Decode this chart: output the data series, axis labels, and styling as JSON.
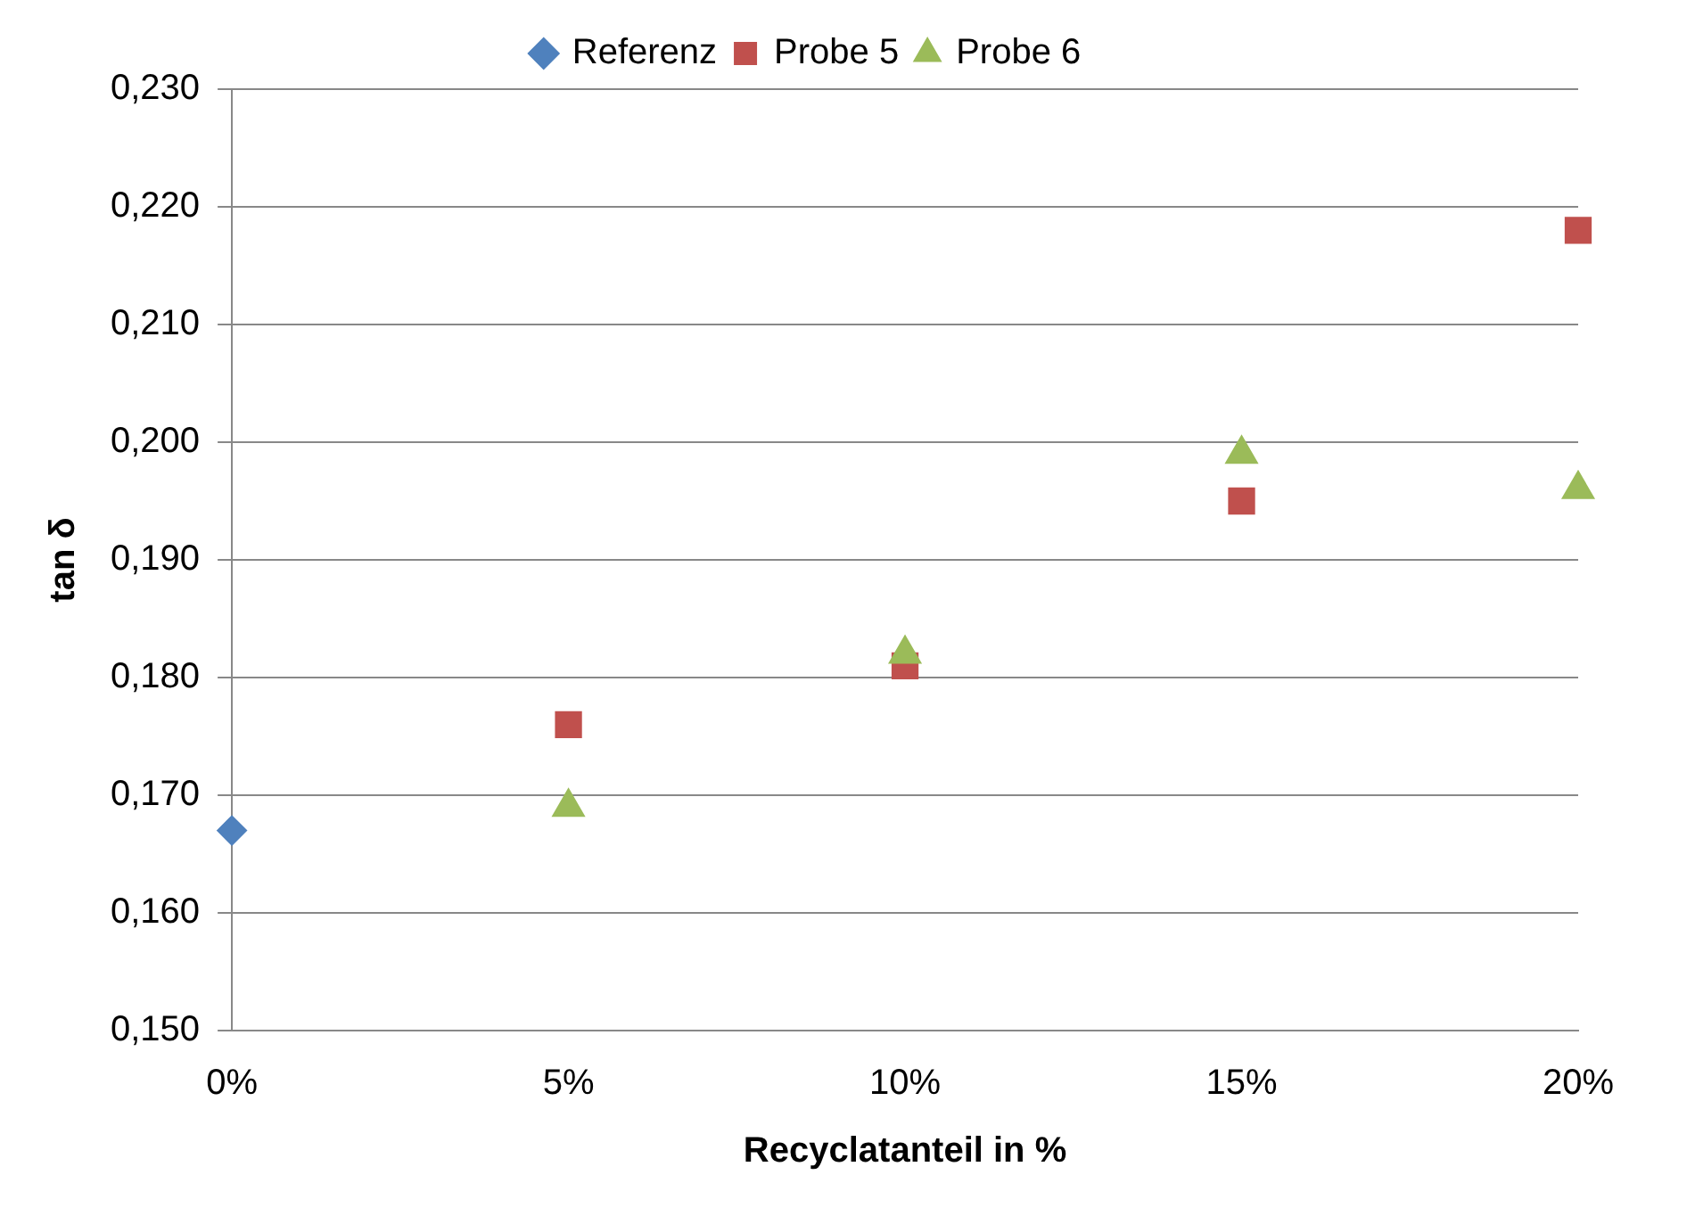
{
  "chart_data": {
    "type": "scatter",
    "xlabel": "Recyclatanteil in %",
    "ylabel": "tan δ",
    "xlim": [
      0,
      20
    ],
    "xticks": [
      {
        "value": 0,
        "label": "0%"
      },
      {
        "value": 5,
        "label": "5%"
      },
      {
        "value": 10,
        "label": "10%"
      },
      {
        "value": 15,
        "label": "15%"
      },
      {
        "value": 20,
        "label": "20%"
      }
    ],
    "ylim": [
      0.15,
      0.23
    ],
    "yticks": [
      {
        "value": 0.15,
        "label": "0,150"
      },
      {
        "value": 0.16,
        "label": "0,160"
      },
      {
        "value": 0.17,
        "label": "0,170"
      },
      {
        "value": 0.18,
        "label": "0,180"
      },
      {
        "value": 0.19,
        "label": "0,190"
      },
      {
        "value": 0.2,
        "label": "0,200"
      },
      {
        "value": 0.21,
        "label": "0,210"
      },
      {
        "value": 0.22,
        "label": "0,220"
      },
      {
        "value": 0.23,
        "label": "0,230"
      }
    ],
    "grid": "y",
    "legend": "top",
    "series": [
      {
        "name": "Referenz",
        "color": "#4f81bd",
        "marker": "diamond",
        "x": [
          0
        ],
        "values": [
          0.167
        ]
      },
      {
        "name": "Probe 5",
        "color": "#c0504d",
        "marker": "square",
        "x": [
          5,
          10,
          15,
          20
        ],
        "values": [
          0.176,
          0.181,
          0.195,
          0.218
        ]
      },
      {
        "name": "Probe 6",
        "color": "#9bbb59",
        "marker": "triangle",
        "x": [
          5,
          10,
          15,
          20
        ],
        "values": [
          0.169,
          0.182,
          0.199,
          0.196
        ]
      }
    ]
  }
}
